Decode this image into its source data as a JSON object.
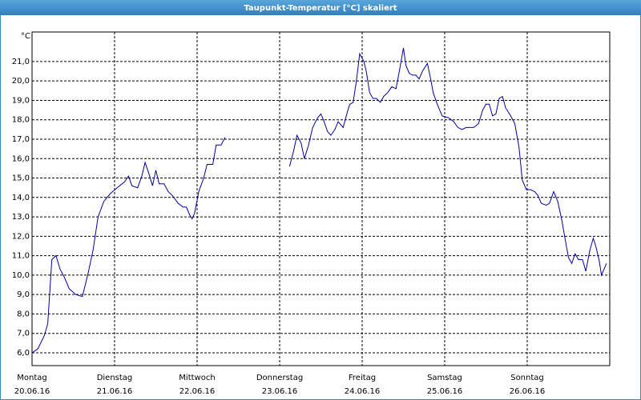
{
  "chart_data": {
    "type": "line",
    "title": "Taupunkt-Temperatur [°C] skaliert",
    "y_unit": "°C",
    "xlim": [
      0,
      7
    ],
    "xticks": [
      {
        "value": 0,
        "label": "Montag"
      },
      {
        "value": 1,
        "label": "Dienstag"
      },
      {
        "value": 2,
        "label": "Mittwoch"
      },
      {
        "value": 3,
        "label": "Donnerstag"
      },
      {
        "value": 4,
        "label": "Freitag"
      },
      {
        "value": 5,
        "label": "Samstag"
      },
      {
        "value": 6,
        "label": "Sonntag"
      }
    ],
    "xtick_dates": [
      "20.06.16",
      "21.06.16",
      "22.06.16",
      "23.06.16",
      "24.06.16",
      "25.06.16",
      "26.06.16"
    ],
    "ylim": [
      5.34,
      22.52
    ],
    "yticks": [
      {
        "value": 6,
        "label": "6,0"
      },
      {
        "value": 7,
        "label": "7,0"
      },
      {
        "value": 8,
        "label": "8,0"
      },
      {
        "value": 9,
        "label": "9,0"
      },
      {
        "value": 10,
        "label": "10,0"
      },
      {
        "value": 11,
        "label": "11,0"
      },
      {
        "value": 12,
        "label": "12,0"
      },
      {
        "value": 13,
        "label": "13,0"
      },
      {
        "value": 14,
        "label": "14,0"
      },
      {
        "value": 15,
        "label": "15,0"
      },
      {
        "value": 16,
        "label": "16,0"
      },
      {
        "value": 17,
        "label": "17,0"
      },
      {
        "value": 18,
        "label": "18,0"
      },
      {
        "value": 19,
        "label": "19,0"
      },
      {
        "value": 20,
        "label": "20,0"
      },
      {
        "value": 21,
        "label": "21,0"
      }
    ],
    "grid": true,
    "color": "#0000a0",
    "x": [
      0,
      0.07,
      0.15,
      0.19,
      0.24,
      0.29,
      0.34,
      0.39,
      0.45,
      0.53,
      0.61,
      0.68,
      0.74,
      0.8,
      0.87,
      0.95,
      1.03,
      1.12,
      1.17,
      1.21,
      1.28,
      1.33,
      1.37,
      1.41,
      1.46,
      1.5,
      1.54,
      1.6,
      1.65,
      1.7,
      1.77,
      1.83,
      1.87,
      1.91,
      1.94,
      1.97,
      2.02,
      2.08,
      2.12,
      2.19,
      2.23,
      2.29,
      2.34,
      2.6,
      3.12,
      3.17,
      3.21,
      3.26,
      3.3,
      3.35,
      3.4,
      3.46,
      3.5,
      3.53,
      3.58,
      3.62,
      3.67,
      3.71,
      3.77,
      3.82,
      3.85,
      3.89,
      3.93,
      3.97,
      4.02,
      4.05,
      4.09,
      4.13,
      4.17,
      4.22,
      4.26,
      4.31,
      4.36,
      4.41,
      4.45,
      4.5,
      4.53,
      4.57,
      4.61,
      4.65,
      4.69,
      4.73,
      4.79,
      4.83,
      4.86,
      4.91,
      4.97,
      5.05,
      5.11,
      5.16,
      5.21,
      5.26,
      5.35,
      5.41,
      5.46,
      5.5,
      5.54,
      5.58,
      5.62,
      5.66,
      5.7,
      5.74,
      5.8,
      5.85,
      5.9,
      5.94,
      5.99,
      6.04,
      6.09,
      6.13,
      6.17,
      6.23,
      6.27,
      6.32,
      6.37,
      6.42,
      6.47,
      6.5,
      6.54,
      6.58,
      6.62,
      6.67,
      6.71,
      6.76,
      6.8,
      6.83,
      6.87,
      6.9,
      6.96
    ],
    "values": [
      6.0,
      6.2,
      6.9,
      7.5,
      10.8,
      11.0,
      10.3,
      9.9,
      9.3,
      9.0,
      8.9,
      10.1,
      11.3,
      13.0,
      13.8,
      14.2,
      14.5,
      14.8,
      15.1,
      14.6,
      14.5,
      15.1,
      15.8,
      15.3,
      14.6,
      15.4,
      14.7,
      14.7,
      14.3,
      14.1,
      13.7,
      13.5,
      13.5,
      13.1,
      12.9,
      13.2,
      14.3,
      15.0,
      15.7,
      15.7,
      16.7,
      16.7,
      17.1,
      null,
      15.6,
      16.4,
      17.2,
      16.8,
      16.0,
      16.7,
      17.6,
      18.1,
      18.3,
      18.0,
      17.4,
      17.2,
      17.5,
      17.9,
      17.6,
      18.4,
      18.8,
      18.9,
      20.0,
      21.4,
      21.0,
      20.5,
      19.4,
      19.1,
      19.1,
      18.9,
      19.2,
      19.4,
      19.7,
      19.6,
      20.5,
      21.7,
      20.8,
      20.4,
      20.3,
      20.3,
      20.1,
      20.5,
      20.9,
      20.1,
      19.4,
      18.8,
      18.2,
      18.1,
      17.9,
      17.6,
      17.5,
      17.6,
      17.6,
      17.8,
      18.5,
      18.8,
      18.8,
      18.2,
      18.3,
      19.1,
      19.2,
      18.6,
      18.2,
      17.8,
      16.6,
      14.9,
      14.4,
      14.4,
      14.3,
      14.1,
      13.7,
      13.6,
      13.7,
      14.3,
      13.8,
      12.8,
      11.6,
      10.9,
      10.6,
      11.1,
      10.8,
      10.8,
      10.2,
      11.3,
      11.9,
      11.5,
      10.8,
      10.0,
      10.6
    ]
  }
}
